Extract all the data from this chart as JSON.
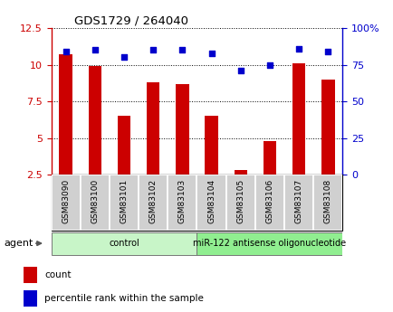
{
  "title": "GDS1729 / 264040",
  "samples": [
    "GSM83090",
    "GSM83100",
    "GSM83101",
    "GSM83102",
    "GSM83103",
    "GSM83104",
    "GSM83105",
    "GSM83106",
    "GSM83107",
    "GSM83108"
  ],
  "red_values": [
    10.7,
    9.9,
    6.5,
    8.8,
    8.7,
    6.5,
    2.8,
    4.8,
    10.1,
    9.0
  ],
  "blue_values": [
    84,
    85,
    80,
    85,
    85,
    83,
    71,
    75,
    86,
    84
  ],
  "ylim_left": [
    2.5,
    12.5
  ],
  "ylim_right": [
    0,
    100
  ],
  "yticks_left": [
    2.5,
    5.0,
    7.5,
    10.0,
    12.5
  ],
  "ytick_labels_left": [
    "2.5",
    "5",
    "7.5",
    "10",
    "12.5"
  ],
  "ytick_labels_right": [
    "0",
    "25",
    "50",
    "75",
    "100%"
  ],
  "ytick_vals_right": [
    0,
    25,
    50,
    75,
    100
  ],
  "groups": [
    {
      "label": "control",
      "start": 0,
      "end": 5,
      "color": "#c8f5c8"
    },
    {
      "label": "miR-122 antisense oligonucleotide",
      "start": 5,
      "end": 10,
      "color": "#90ee90"
    }
  ],
  "bar_color": "#cc0000",
  "dot_color": "#0000cc",
  "tick_label_bg": "#d0d0d0",
  "legend_red_label": "count",
  "legend_blue_label": "percentile rank within the sample",
  "agent_label": "agent"
}
